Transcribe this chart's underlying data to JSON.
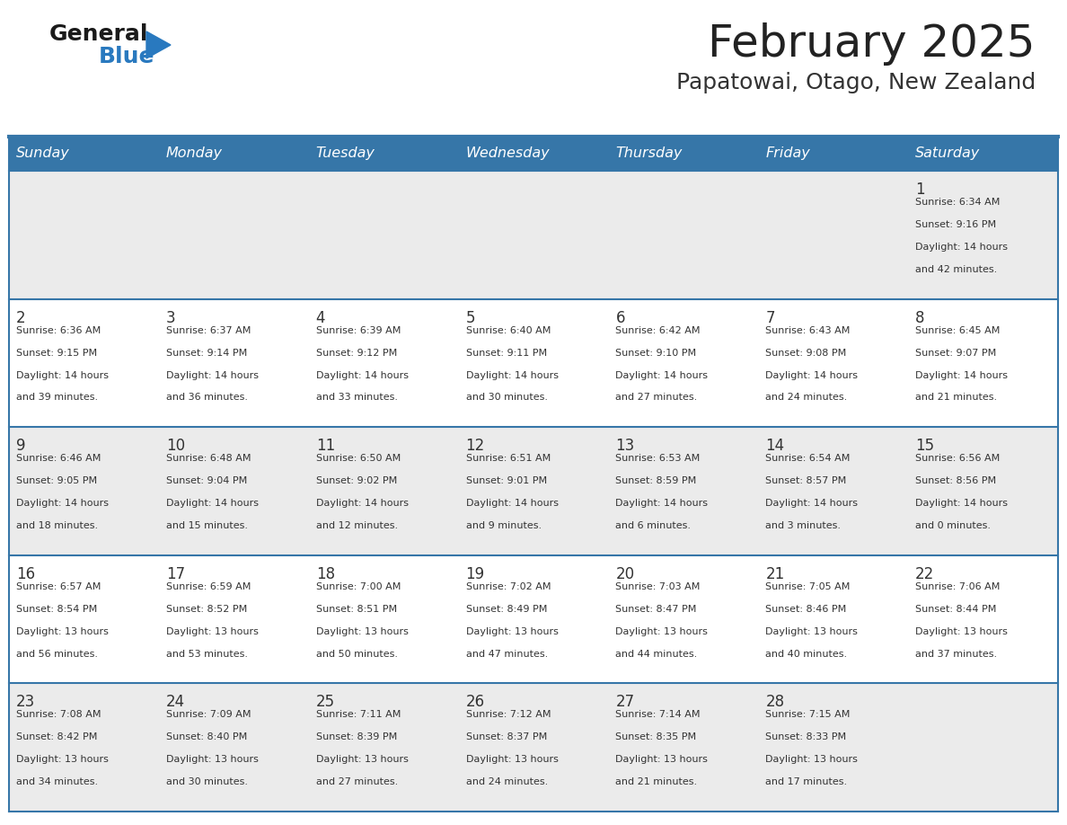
{
  "title": "February 2025",
  "subtitle": "Papatowai, Otago, New Zealand",
  "header_bg_color": "#3676A8",
  "header_text_color": "#FFFFFF",
  "day_headers": [
    "Sunday",
    "Monday",
    "Tuesday",
    "Wednesday",
    "Thursday",
    "Friday",
    "Saturday"
  ],
  "cell_bg_row0": "#EBEBEB",
  "cell_bg_row1": "#FFFFFF",
  "cell_bg_row2": "#EBEBEB",
  "cell_bg_row3": "#FFFFFF",
  "cell_bg_row4": "#EBEBEB",
  "cell_border_color": "#3676A8",
  "day_num_color": "#333333",
  "info_text_color": "#333333",
  "logo_general_color": "#1a1a1a",
  "logo_blue_color": "#2979BF",
  "calendar_data": [
    [
      null,
      null,
      null,
      null,
      null,
      null,
      {
        "day": 1,
        "sunrise": "6:34 AM",
        "sunset": "9:16 PM",
        "daylight": "14 hours",
        "daylight2": "and 42 minutes."
      }
    ],
    [
      {
        "day": 2,
        "sunrise": "6:36 AM",
        "sunset": "9:15 PM",
        "daylight": "14 hours",
        "daylight2": "and 39 minutes."
      },
      {
        "day": 3,
        "sunrise": "6:37 AM",
        "sunset": "9:14 PM",
        "daylight": "14 hours",
        "daylight2": "and 36 minutes."
      },
      {
        "day": 4,
        "sunrise": "6:39 AM",
        "sunset": "9:12 PM",
        "daylight": "14 hours",
        "daylight2": "and 33 minutes."
      },
      {
        "day": 5,
        "sunrise": "6:40 AM",
        "sunset": "9:11 PM",
        "daylight": "14 hours",
        "daylight2": "and 30 minutes."
      },
      {
        "day": 6,
        "sunrise": "6:42 AM",
        "sunset": "9:10 PM",
        "daylight": "14 hours",
        "daylight2": "and 27 minutes."
      },
      {
        "day": 7,
        "sunrise": "6:43 AM",
        "sunset": "9:08 PM",
        "daylight": "14 hours",
        "daylight2": "and 24 minutes."
      },
      {
        "day": 8,
        "sunrise": "6:45 AM",
        "sunset": "9:07 PM",
        "daylight": "14 hours",
        "daylight2": "and 21 minutes."
      }
    ],
    [
      {
        "day": 9,
        "sunrise": "6:46 AM",
        "sunset": "9:05 PM",
        "daylight": "14 hours",
        "daylight2": "and 18 minutes."
      },
      {
        "day": 10,
        "sunrise": "6:48 AM",
        "sunset": "9:04 PM",
        "daylight": "14 hours",
        "daylight2": "and 15 minutes."
      },
      {
        "day": 11,
        "sunrise": "6:50 AM",
        "sunset": "9:02 PM",
        "daylight": "14 hours",
        "daylight2": "and 12 minutes."
      },
      {
        "day": 12,
        "sunrise": "6:51 AM",
        "sunset": "9:01 PM",
        "daylight": "14 hours",
        "daylight2": "and 9 minutes."
      },
      {
        "day": 13,
        "sunrise": "6:53 AM",
        "sunset": "8:59 PM",
        "daylight": "14 hours",
        "daylight2": "and 6 minutes."
      },
      {
        "day": 14,
        "sunrise": "6:54 AM",
        "sunset": "8:57 PM",
        "daylight": "14 hours",
        "daylight2": "and 3 minutes."
      },
      {
        "day": 15,
        "sunrise": "6:56 AM",
        "sunset": "8:56 PM",
        "daylight": "14 hours",
        "daylight2": "and 0 minutes."
      }
    ],
    [
      {
        "day": 16,
        "sunrise": "6:57 AM",
        "sunset": "8:54 PM",
        "daylight": "13 hours",
        "daylight2": "and 56 minutes."
      },
      {
        "day": 17,
        "sunrise": "6:59 AM",
        "sunset": "8:52 PM",
        "daylight": "13 hours",
        "daylight2": "and 53 minutes."
      },
      {
        "day": 18,
        "sunrise": "7:00 AM",
        "sunset": "8:51 PM",
        "daylight": "13 hours",
        "daylight2": "and 50 minutes."
      },
      {
        "day": 19,
        "sunrise": "7:02 AM",
        "sunset": "8:49 PM",
        "daylight": "13 hours",
        "daylight2": "and 47 minutes."
      },
      {
        "day": 20,
        "sunrise": "7:03 AM",
        "sunset": "8:47 PM",
        "daylight": "13 hours",
        "daylight2": "and 44 minutes."
      },
      {
        "day": 21,
        "sunrise": "7:05 AM",
        "sunset": "8:46 PM",
        "daylight": "13 hours",
        "daylight2": "and 40 minutes."
      },
      {
        "day": 22,
        "sunrise": "7:06 AM",
        "sunset": "8:44 PM",
        "daylight": "13 hours",
        "daylight2": "and 37 minutes."
      }
    ],
    [
      {
        "day": 23,
        "sunrise": "7:08 AM",
        "sunset": "8:42 PM",
        "daylight": "13 hours",
        "daylight2": "and 34 minutes."
      },
      {
        "day": 24,
        "sunrise": "7:09 AM",
        "sunset": "8:40 PM",
        "daylight": "13 hours",
        "daylight2": "and 30 minutes."
      },
      {
        "day": 25,
        "sunrise": "7:11 AM",
        "sunset": "8:39 PM",
        "daylight": "13 hours",
        "daylight2": "and 27 minutes."
      },
      {
        "day": 26,
        "sunrise": "7:12 AM",
        "sunset": "8:37 PM",
        "daylight": "13 hours",
        "daylight2": "and 24 minutes."
      },
      {
        "day": 27,
        "sunrise": "7:14 AM",
        "sunset": "8:35 PM",
        "daylight": "13 hours",
        "daylight2": "and 21 minutes."
      },
      {
        "day": 28,
        "sunrise": "7:15 AM",
        "sunset": "8:33 PM",
        "daylight": "13 hours",
        "daylight2": "and 17 minutes."
      },
      null
    ]
  ]
}
